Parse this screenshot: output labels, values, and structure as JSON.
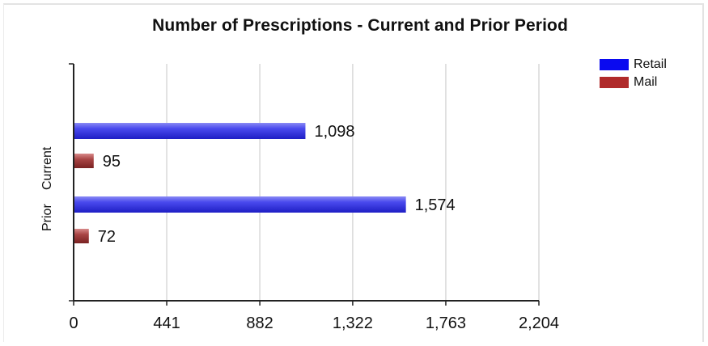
{
  "chart_data": {
    "type": "bar",
    "orientation": "horizontal",
    "title": "Number of Prescriptions - Current and Prior Period",
    "categories": [
      "Current",
      "Prior"
    ],
    "series": [
      {
        "name": "Retail",
        "values": [
          1098,
          1574
        ],
        "labels": [
          "1,098",
          "1,574"
        ],
        "color": "#3333dd"
      },
      {
        "name": "Mail",
        "values": [
          95,
          72
        ],
        "labels": [
          "95",
          "72"
        ],
        "color": "#a33a3a"
      }
    ],
    "xlim": [
      0,
      2204
    ],
    "xticks": [
      0,
      441,
      882,
      1322,
      1763,
      2204
    ],
    "xtick_labels": [
      "0",
      "441",
      "882",
      "1,322",
      "1,763",
      "2,204"
    ],
    "grid": "vertical",
    "legend_position": "top-right"
  }
}
